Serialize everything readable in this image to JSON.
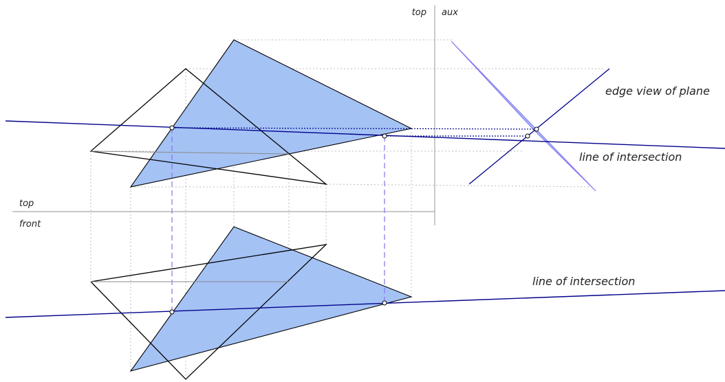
{
  "labels": {
    "view_top_left": "top",
    "view_aux": "aux",
    "fold_top": "top",
    "fold_front": "front",
    "edge_view": "edge view of plane",
    "intersection_top": "line of intersection",
    "intersection_front": "line of intersection"
  },
  "colors": {
    "plane_fill": "#a4c2f4",
    "plane_edge_aux": "#8a7cf0",
    "intersection_line": "#00008b",
    "fold_line": "#aaaaaa",
    "projector": "#b8b8b8",
    "dashed_projector": "#8a7cf0",
    "outline": "#000000",
    "point_fill": "#ffffff"
  }
}
